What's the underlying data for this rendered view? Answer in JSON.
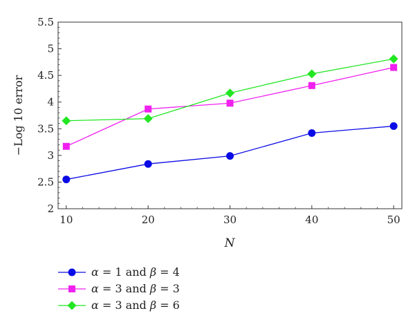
{
  "chart_data": {
    "type": "line",
    "title": "",
    "xlabel": "N",
    "ylabel": "−Log 10 error",
    "x": [
      10,
      20,
      30,
      40,
      50
    ],
    "xlim": [
      9,
      51
    ],
    "ylim": [
      2,
      5.5
    ],
    "xticks": [
      "10",
      "20",
      "30",
      "40",
      "50"
    ],
    "yticks": [
      "2",
      "2.5",
      "3",
      "3.5",
      "4",
      "4.5",
      "5",
      "5.5"
    ],
    "grid": false,
    "legend_position": "bottom-left",
    "series": [
      {
        "name": "α = 1 and β = 4",
        "legend": {
          "a_sym": "α",
          "a_val": " = 1 and ",
          "b_sym": "β",
          "b_val": " = 4"
        },
        "marker": "circle",
        "color": "#0a0ae6",
        "values": [
          2.55,
          2.84,
          2.99,
          3.42,
          3.55
        ]
      },
      {
        "name": "α = 3 and β = 3",
        "legend": {
          "a_sym": "α",
          "a_val": " = 3 and ",
          "b_sym": "β",
          "b_val": " = 3"
        },
        "marker": "square",
        "color": "#f020f0",
        "values": [
          3.17,
          3.87,
          3.98,
          4.31,
          4.65
        ]
      },
      {
        "name": "α = 3 and β = 6",
        "legend": {
          "a_sym": "α",
          "a_val": " = 3 and ",
          "b_sym": "β",
          "b_val": " = 6"
        },
        "marker": "diamond",
        "color": "#22e622",
        "values": [
          3.65,
          3.69,
          4.17,
          4.53,
          4.81
        ]
      }
    ]
  }
}
